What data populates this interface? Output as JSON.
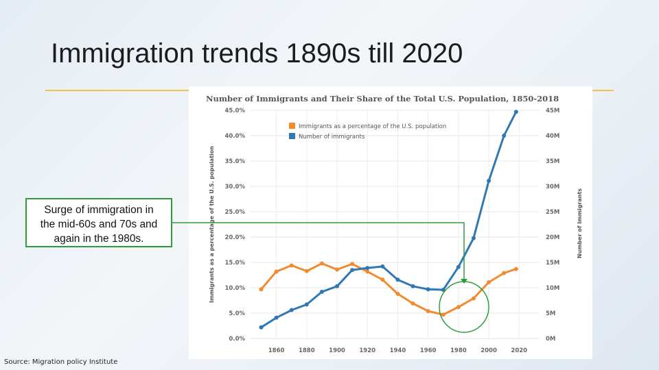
{
  "slide": {
    "title": "Immigration trends 1890s till 2020",
    "callout_lines": [
      "Surge of immigration in",
      "the mid-60s and 70s and",
      "again in the 1980s."
    ],
    "source": "Source: Migration policy Institute"
  },
  "colors": {
    "accent_rule": "#f0c14b",
    "callout_border": "#2a9d3a",
    "series_percent": "#f28b30",
    "series_number": "#2f78b4"
  },
  "chart_data": {
    "type": "line",
    "title": "Number of Immigrants and Their Share of the Total U.S. Population, 1850-2018",
    "ylabel_left": "Immigrants as a percentage of the U.S. population",
    "ylabel_right": "Number of Immigrants",
    "x_ticks": [
      1860,
      1880,
      1900,
      1920,
      1940,
      1960,
      1980,
      2000,
      2020
    ],
    "xlim": [
      1843,
      2033
    ],
    "y_left_ticks": [
      "0.0%",
      "5.0%",
      "10.0%",
      "15.0%",
      "20.0%",
      "25.0%",
      "30.0%",
      "35.0%",
      "40.0%",
      "45.0%"
    ],
    "y_left_lim": [
      0,
      45
    ],
    "y_right_ticks": [
      "0M",
      "5M",
      "10M",
      "15M",
      "20M",
      "25M",
      "30M",
      "35M",
      "40M",
      "45M"
    ],
    "y_right_lim": [
      0,
      45
    ],
    "grid": true,
    "legend_placement": "top-left",
    "series": [
      {
        "name": "Immigrants as a percentage of the U.S. population",
        "axis": "left",
        "x": [
          1850,
          1860,
          1870,
          1880,
          1890,
          1900,
          1910,
          1920,
          1930,
          1940,
          1950,
          1960,
          1970,
          1980,
          1990,
          2000,
          2010,
          2018
        ],
        "values": [
          9.7,
          13.2,
          14.4,
          13.3,
          14.8,
          13.6,
          14.7,
          13.2,
          11.6,
          8.8,
          6.9,
          5.4,
          4.7,
          6.2,
          7.9,
          11.1,
          12.9,
          13.7
        ]
      },
      {
        "name": "Number of immigrants",
        "axis": "right",
        "x": [
          1850,
          1860,
          1870,
          1880,
          1890,
          1900,
          1910,
          1920,
          1930,
          1940,
          1950,
          1960,
          1970,
          1980,
          1990,
          2000,
          2010,
          2018
        ],
        "values": [
          2.2,
          4.1,
          5.6,
          6.7,
          9.2,
          10.3,
          13.5,
          13.9,
          14.2,
          11.6,
          10.3,
          9.7,
          9.6,
          14.1,
          19.8,
          31.1,
          40.0,
          44.7
        ]
      }
    ]
  }
}
